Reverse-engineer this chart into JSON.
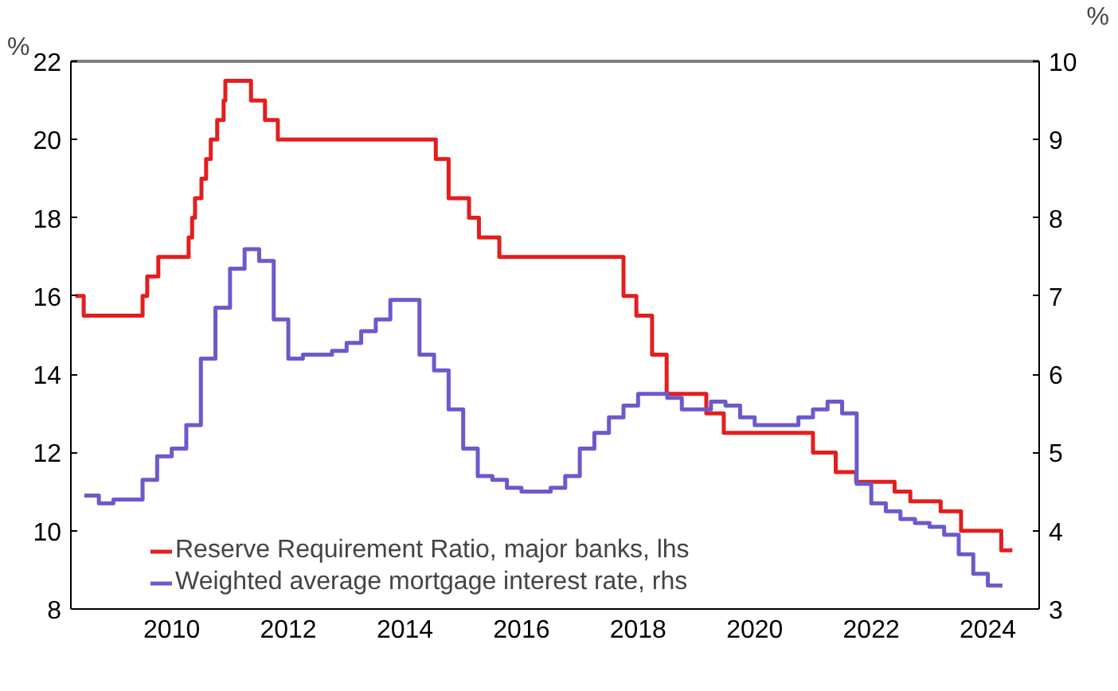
{
  "chart_data": {
    "type": "step",
    "ylabel": "%",
    "y2label": "%",
    "xlim": [
      2008.77,
      2025.38
    ],
    "xticks": [
      {
        "value": 2010.5,
        "label": "2010"
      },
      {
        "value": 2012.5,
        "label": "2012"
      },
      {
        "value": 2014.5,
        "label": "2014"
      },
      {
        "value": 2016.5,
        "label": "2016"
      },
      {
        "value": 2018.5,
        "label": "2018"
      },
      {
        "value": 2020.5,
        "label": "2020"
      },
      {
        "value": 2022.5,
        "label": "2022"
      },
      {
        "value": 2024.5,
        "label": "2024"
      }
    ],
    "ylim": [
      8,
      22
    ],
    "yticks": [
      8,
      10,
      12,
      14,
      16,
      18,
      20,
      22
    ],
    "y2lim": [
      3,
      10
    ],
    "y2ticks": [
      3,
      4,
      5,
      6,
      7,
      8,
      9,
      10
    ],
    "grid": false,
    "legend": "bottom left",
    "line_style": "solid",
    "series": [
      {
        "name": "Reserve Requirement Ratio, major banks, lhs",
        "color": "#e31e1e",
        "x": [
          2008.85,
          2008.99,
          2010.0,
          2010.08,
          2010.27,
          2010.79,
          2010.85,
          2010.9,
          2011.01,
          2011.09,
          2011.17,
          2011.28,
          2011.39,
          2011.42,
          2011.86,
          2012.1,
          2012.32,
          2015.03,
          2015.25,
          2015.6,
          2015.77,
          2016.12,
          2018.25,
          2018.47,
          2018.74,
          2018.99,
          2019.67,
          2019.97,
          2021.5,
          2021.89,
          2022.24,
          2022.9,
          2023.17,
          2023.69,
          2024.04,
          2024.73,
          2024.92
        ],
        "values": [
          16,
          15.5,
          16,
          16.5,
          17,
          17.5,
          18,
          18.5,
          19,
          19.5,
          20,
          20.5,
          21,
          21.5,
          21,
          20.5,
          20,
          19.5,
          18.5,
          18,
          17.5,
          17,
          16,
          15.5,
          14.5,
          13.5,
          13,
          12.5,
          12,
          11.5,
          11.25,
          11,
          10.75,
          10.5,
          10,
          9.5,
          9.5
        ]
      },
      {
        "name": "Weighted average mortgage interest rate, rhs",
        "color": "#6a5acd",
        "axis": "y2",
        "x": [
          2009.0,
          2009.25,
          2009.5,
          2009.75,
          2010.0,
          2010.25,
          2010.5,
          2010.75,
          2011.0,
          2011.25,
          2011.5,
          2011.75,
          2012.0,
          2012.25,
          2012.5,
          2012.75,
          2013.0,
          2013.25,
          2013.5,
          2013.75,
          2014.0,
          2014.25,
          2014.5,
          2014.75,
          2015.0,
          2015.25,
          2015.5,
          2015.75,
          2016.0,
          2016.25,
          2016.5,
          2016.75,
          2017.0,
          2017.25,
          2017.5,
          2017.75,
          2018.0,
          2018.25,
          2018.5,
          2018.75,
          2019.0,
          2019.25,
          2019.5,
          2019.75,
          2020.0,
          2020.25,
          2020.5,
          2020.75,
          2021.0,
          2021.25,
          2021.5,
          2021.75,
          2022.0,
          2022.25,
          2022.5,
          2022.75,
          2023.0,
          2023.25,
          2023.5,
          2023.75,
          2024.0,
          2024.25,
          2024.5,
          2024.75
        ],
        "values": [
          4.45,
          4.35,
          4.4,
          4.4,
          4.65,
          4.95,
          5.05,
          5.35,
          6.2,
          6.85,
          7.35,
          7.6,
          7.45,
          6.7,
          6.2,
          6.25,
          6.25,
          6.3,
          6.4,
          6.55,
          6.7,
          6.95,
          6.95,
          6.25,
          6.05,
          5.55,
          5.05,
          4.7,
          4.65,
          4.55,
          4.5,
          4.5,
          4.55,
          4.7,
          5.05,
          5.25,
          5.45,
          5.6,
          5.75,
          5.75,
          5.7,
          5.55,
          5.55,
          5.65,
          5.6,
          5.45,
          5.35,
          5.35,
          5.35,
          5.45,
          5.55,
          5.65,
          5.5,
          4.6,
          4.35,
          4.25,
          4.15,
          4.1,
          4.05,
          3.95,
          3.7,
          3.45,
          3.3,
          3.3
        ]
      }
    ]
  }
}
